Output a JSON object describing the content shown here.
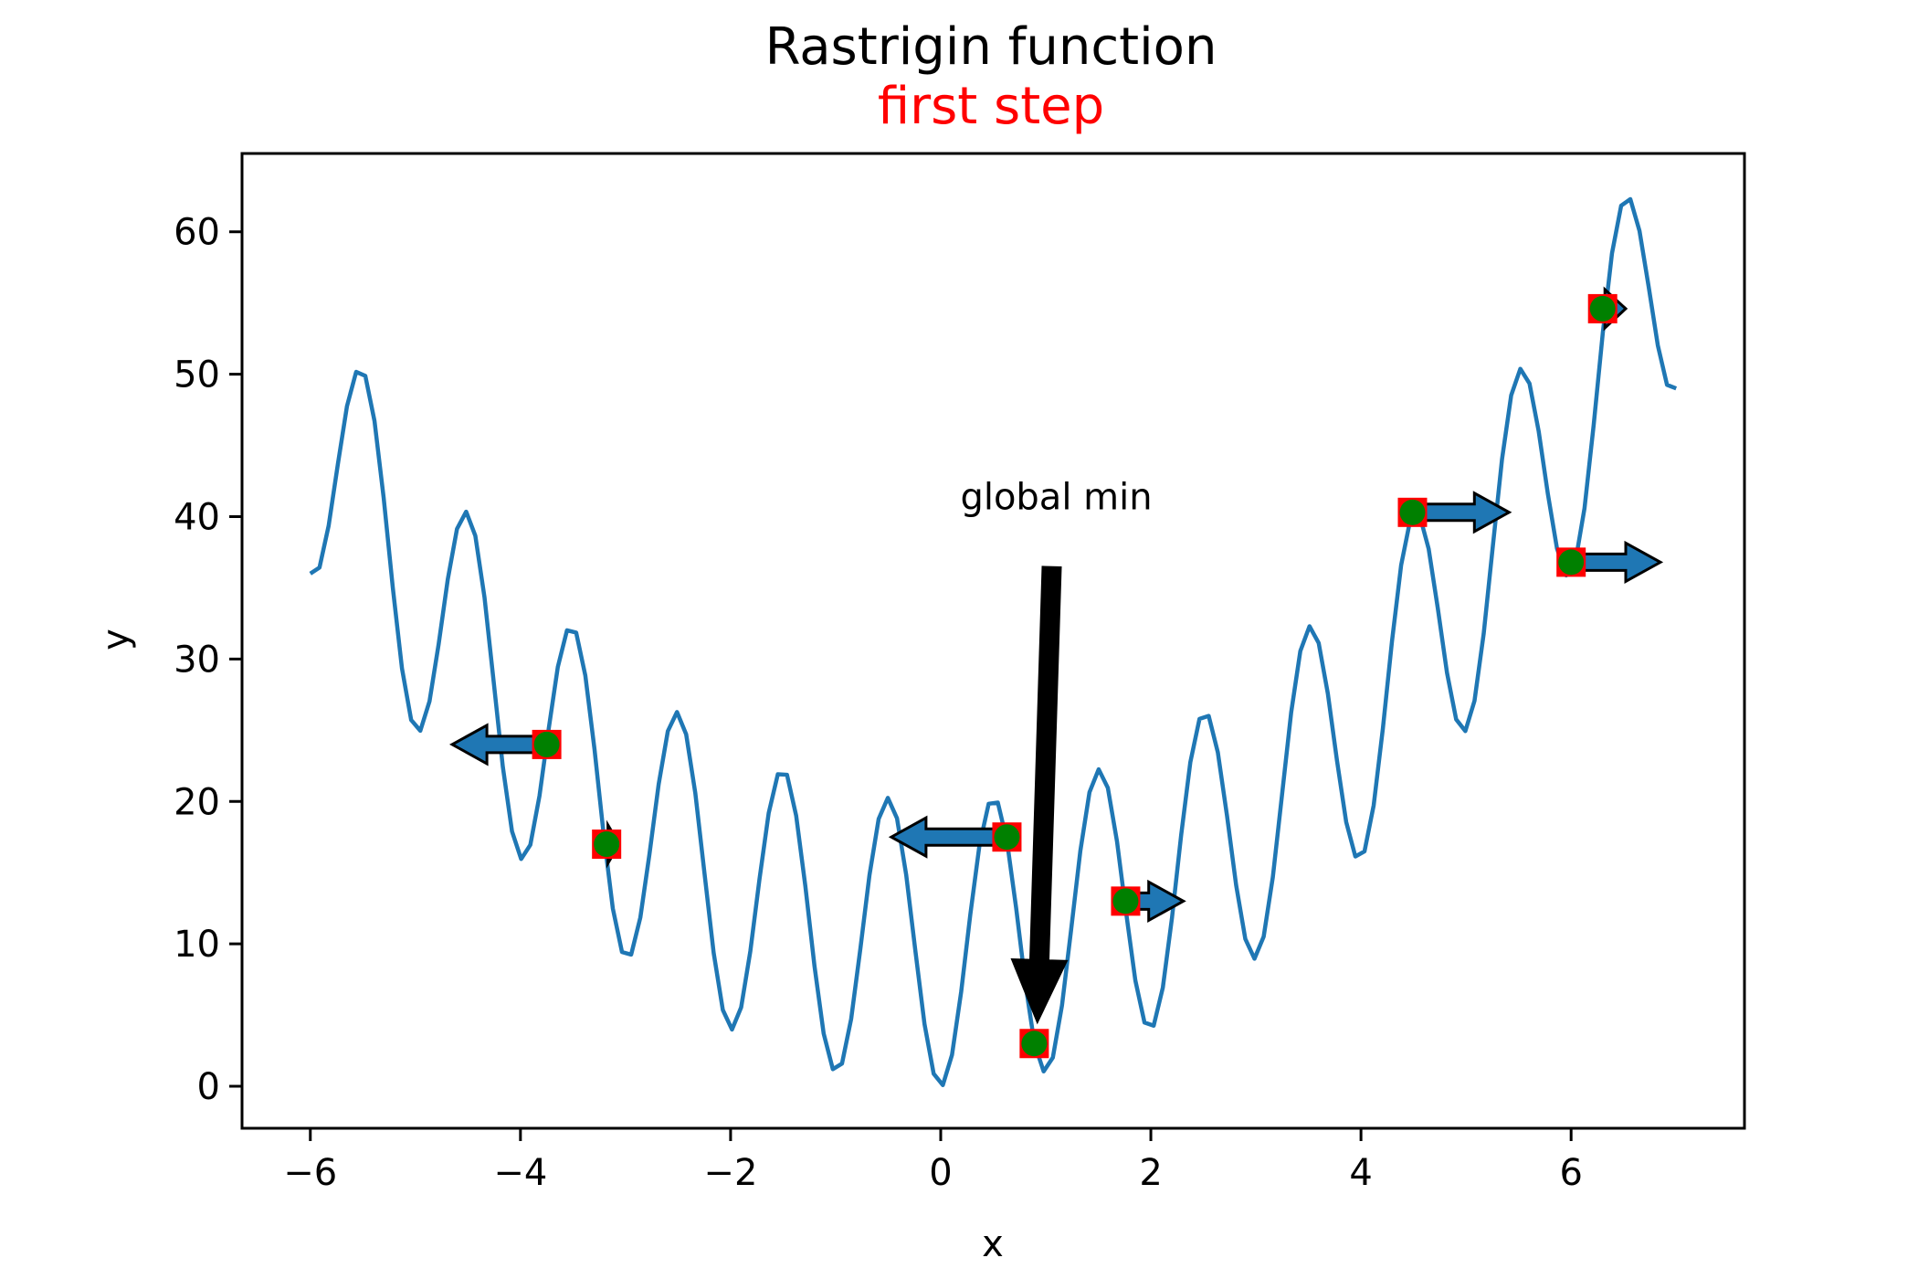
{
  "chart_data": {
    "type": "line",
    "title": "Rastrigin function",
    "subtitle": "first step",
    "xlabel": "x",
    "ylabel": "y",
    "xlim": [
      -6.65,
      7.65
    ],
    "ylim": [
      -2.95,
      65.5
    ],
    "xticks": [
      -6,
      -4,
      -2,
      0,
      2,
      4,
      6
    ],
    "yticks": [
      0,
      10,
      20,
      30,
      40,
      50,
      60
    ],
    "xtick_labels": [
      "−6",
      "−4",
      "−2",
      "0",
      "2",
      "4",
      "6"
    ],
    "ytick_labels": [
      "0",
      "10",
      "20",
      "30",
      "40",
      "50",
      "60"
    ],
    "grid": false,
    "function": "x^2 + 10 - 10*cos(2*pi*x)",
    "x_range": [
      -6,
      7
    ],
    "num_points": 150,
    "points": [
      {
        "x": -3.75,
        "y": 24.0,
        "dx": -0.9
      },
      {
        "x": -3.18,
        "y": 17.0,
        "dx": 0.12
      },
      {
        "x": 0.63,
        "y": 17.5,
        "dx": -1.1
      },
      {
        "x": 0.89,
        "y": 3.0,
        "dx": 0.0
      },
      {
        "x": 1.76,
        "y": 13.0,
        "dx": 0.55
      },
      {
        "x": 4.49,
        "y": 40.3,
        "dx": 0.92
      },
      {
        "x": 6.0,
        "y": 36.8,
        "dx": 0.85
      },
      {
        "x": 6.3,
        "y": 54.6,
        "dx": 0.22
      }
    ],
    "annotation": {
      "text": "global min",
      "text_x": 1.1,
      "text_y": 40.5,
      "arrow_to_x": 0.92,
      "arrow_to_y": 4.5
    },
    "colors": {
      "line": "#1f77b4",
      "arrow_fill": "#1f77b4",
      "arrow_edge": "#000000",
      "square": "#ff0000",
      "dot": "#008000",
      "subtitle": "#ff0000"
    }
  }
}
